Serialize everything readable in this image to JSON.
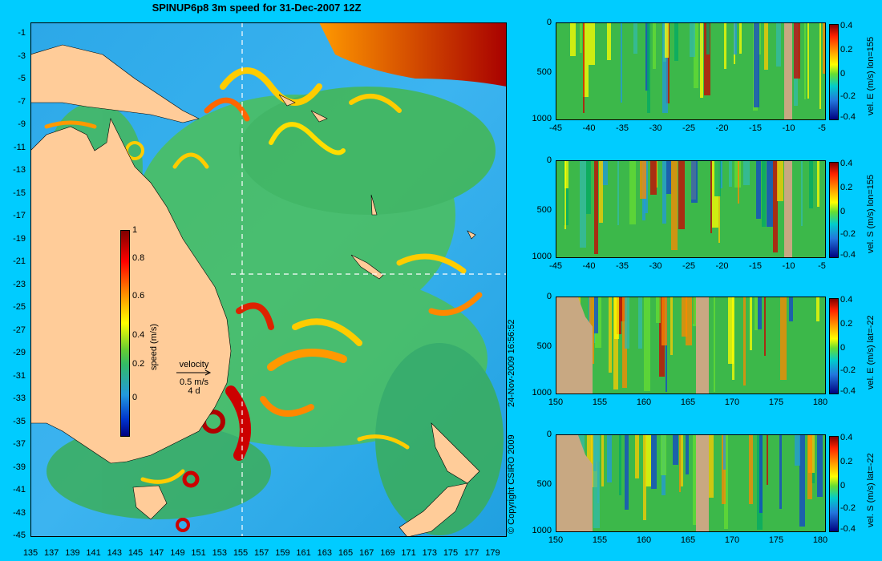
{
  "title": "SPINUP6p8 3m speed for 31-Dec-2007 12Z",
  "timestamp": "24-Nov-2009 16:56:52",
  "copyright": "© Copyright CSIRO 2009",
  "map": {
    "lat_ticks": [
      "-1",
      "-3",
      "-5",
      "-7",
      "-9",
      "-11",
      "-13",
      "-15",
      "-17",
      "-19",
      "-21",
      "-23",
      "-25",
      "-27",
      "-29",
      "-31",
      "-33",
      "-35",
      "-37",
      "-39",
      "-41",
      "-43",
      "-45"
    ],
    "lon_ticks": [
      "135",
      "137",
      "139",
      "141",
      "143",
      "145",
      "147",
      "149",
      "151",
      "153",
      "155",
      "157",
      "159",
      "161",
      "163",
      "165",
      "167",
      "169",
      "171",
      "173",
      "175",
      "177",
      "179"
    ],
    "colorbar": {
      "label": "speed (m/s)",
      "ticks": [
        "1",
        "0.8",
        "0.6",
        "0.4",
        "0.2",
        "0"
      ]
    },
    "velocity_ref": {
      "title": "velocity",
      "speed": "0.5 m/s",
      "time": "4 d"
    },
    "section_lon": 155,
    "section_lat": -22
  },
  "panels": [
    {
      "ylabel": "vel. E (m/s) lon=155",
      "x_ticks": [
        "-45",
        "-40",
        "-35",
        "-30",
        "-25",
        "-20",
        "-15",
        "-10",
        "-5"
      ],
      "y_ticks": [
        "0",
        "500",
        "1000"
      ],
      "cb_ticks": [
        "0.4",
        "0.2",
        "0",
        "-0.2",
        "-0.4"
      ]
    },
    {
      "ylabel": "vel. S (m/s) lon=155",
      "x_ticks": [
        "-45",
        "-40",
        "-35",
        "-30",
        "-25",
        "-20",
        "-15",
        "-10",
        "-5"
      ],
      "y_ticks": [
        "0",
        "500",
        "1000"
      ],
      "cb_ticks": [
        "0.4",
        "0.2",
        "0",
        "-0.2",
        "-0.4"
      ]
    },
    {
      "ylabel": "vel. E (m/s) lat=-22",
      "x_ticks": [
        "150",
        "155",
        "160",
        "165",
        "170",
        "175",
        "180"
      ],
      "y_ticks": [
        "0",
        "500",
        "1000"
      ],
      "cb_ticks": [
        "0.4",
        "0.2",
        "0",
        "-0.2",
        "-0.4"
      ]
    },
    {
      "ylabel": "vel. S (m/s) lat=-22",
      "x_ticks": [
        "150",
        "155",
        "160",
        "165",
        "170",
        "175",
        "180"
      ],
      "y_ticks": [
        "0",
        "500",
        "1000"
      ],
      "cb_ticks": [
        "0.4",
        "0.2",
        "0",
        "-0.2",
        "-0.4"
      ]
    }
  ]
}
